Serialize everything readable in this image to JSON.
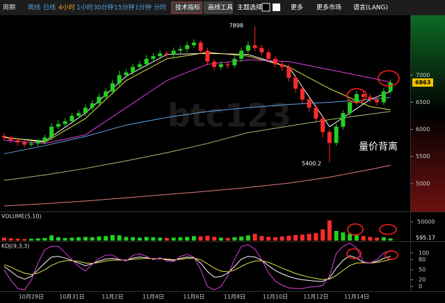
{
  "toolbar": {
    "items": [
      "周期",
      "周线",
      "日线",
      "4小时",
      "1小时",
      "30分钟",
      "15分钟",
      "1分钟",
      "分时",
      "技术指标",
      "画线工具",
      "主题选择",
      "更多",
      "更多市场",
      "语言(LANG)"
    ]
  },
  "watermark": "btc123",
  "chart_data": [
    {
      "type": "candlestick",
      "categories": [
        null,
        null,
        null,
        null,
        "10月29日",
        null,
        null,
        null,
        null,
        null,
        "10月31日",
        null,
        null,
        null,
        null,
        null,
        "11月2日",
        null,
        null,
        null,
        null,
        null,
        "11月4日",
        null,
        null,
        null,
        null,
        null,
        "11月6日",
        null,
        null,
        null,
        null,
        null,
        "11月8日",
        null,
        null,
        null,
        null,
        null,
        "11月10日",
        null,
        null,
        null,
        null,
        null,
        "11月12日",
        null,
        null,
        null,
        null,
        null,
        "11月14日",
        null,
        null,
        null,
        null,
        null
      ],
      "open": [
        5880,
        5850,
        5800,
        5760,
        5720,
        5740,
        5780,
        5850,
        6050,
        6100,
        6150,
        6250,
        6300,
        6400,
        6480,
        6600,
        6700,
        6850,
        7000,
        7050,
        7150,
        7200,
        7300,
        7350,
        7400,
        7380,
        7450,
        7480,
        7550,
        7600,
        7450,
        7250,
        7150,
        7200,
        7180,
        7300,
        7450,
        7550,
        7500,
        7420,
        7300,
        7200,
        7150,
        6950,
        6750,
        6550,
        6400,
        6200,
        5950,
        5750,
        6050,
        6300,
        6500,
        6650,
        6600,
        6550,
        6500,
        6700
      ],
      "high": [
        5930,
        5890,
        5840,
        5800,
        5790,
        5830,
        5900,
        6120,
        6170,
        6210,
        6300,
        6360,
        6460,
        6540,
        6660,
        6760,
        6920,
        7080,
        7110,
        7210,
        7260,
        7370,
        7410,
        7460,
        7450,
        7510,
        7540,
        7610,
        7660,
        7640,
        7500,
        7300,
        7260,
        7240,
        7360,
        7510,
        7620,
        7898,
        7560,
        7470,
        7350,
        7260,
        7200,
        7000,
        6800,
        6600,
        6450,
        6260,
        6000,
        6100,
        6350,
        6560,
        6700,
        6720,
        6650,
        6600,
        6760,
        6920
      ],
      "low": [
        5790,
        5750,
        5700,
        5670,
        5680,
        5690,
        5730,
        5800,
        6000,
        6050,
        6100,
        6200,
        6240,
        6350,
        6420,
        6540,
        6640,
        6800,
        6940,
        7000,
        7100,
        7150,
        7250,
        7290,
        7320,
        7330,
        7400,
        7420,
        7500,
        7390,
        7180,
        7080,
        7100,
        7120,
        7130,
        7240,
        7400,
        7440,
        7360,
        7240,
        7140,
        7080,
        6880,
        6680,
        6480,
        6330,
        6120,
        5850,
        5400.2,
        5700,
        6000,
        6250,
        6450,
        6540,
        6490,
        6440,
        6450,
        6650
      ],
      "close": [
        5850,
        5800,
        5760,
        5720,
        5740,
        5780,
        5850,
        6050,
        6100,
        6150,
        6250,
        6300,
        6400,
        6480,
        6600,
        6700,
        6850,
        7000,
        7050,
        7150,
        7200,
        7300,
        7350,
        7400,
        7380,
        7450,
        7480,
        7550,
        7600,
        7450,
        7250,
        7150,
        7200,
        7180,
        7300,
        7450,
        7550,
        7500,
        7420,
        7300,
        7200,
        7150,
        6950,
        6750,
        6550,
        6400,
        6200,
        5950,
        5750,
        6050,
        6300,
        6500,
        6650,
        6600,
        6550,
        6500,
        6700,
        6863
      ],
      "up_color": "#22d022",
      "down_color": "#ff2b2b",
      "line_x": [
        0,
        6,
        12,
        18,
        24,
        30,
        36,
        42,
        48,
        54,
        57
      ],
      "lines": [
        {
          "color": "#ffffff",
          "values": [
            5850,
            5780,
            6300,
            6980,
            7380,
            7400,
            7380,
            7150,
            6050,
            6550,
            6700
          ]
        },
        {
          "color": "#e8e84a",
          "values": [
            5860,
            5760,
            6200,
            6900,
            7300,
            7420,
            7350,
            7150,
            6750,
            6420,
            6360
          ]
        },
        {
          "color": "#e040e0",
          "values": [
            5800,
            5740,
            5900,
            6400,
            6900,
            7200,
            7280,
            7250,
            7100,
            6950,
            6870
          ]
        },
        {
          "color": "#5fa8e8",
          "values": [
            5550,
            5700,
            5870,
            6080,
            6220,
            6330,
            6400,
            6460,
            6500,
            6550,
            6590
          ]
        },
        {
          "color": "#a8c070",
          "values": [
            5060,
            5160,
            5280,
            5420,
            5570,
            5740,
            5940,
            6060,
            6180,
            6280,
            6330
          ]
        },
        {
          "color": "#e08080",
          "values": [
            4590,
            4630,
            4680,
            4740,
            4800,
            4860,
            4930,
            5010,
            5120,
            5260,
            5340
          ]
        }
      ],
      "ylim": [
        4487,
        8103
      ],
      "yticks": [
        5000,
        5500,
        6000,
        6500,
        7000
      ],
      "current": 6863,
      "annotations": [
        "7898",
        "5400.2",
        "量价背离"
      ]
    },
    {
      "type": "bar",
      "title": "VOLUME(5,10)",
      "values": [
        8000,
        6000,
        5000,
        4000,
        5000,
        6000,
        7000,
        14000,
        9000,
        7000,
        8000,
        9000,
        10000,
        9000,
        11000,
        12000,
        15000,
        14000,
        10000,
        9000,
        8000,
        10000,
        9000,
        8000,
        7000,
        8000,
        9000,
        10000,
        12000,
        11000,
        13000,
        10000,
        8000,
        7000,
        9000,
        11000,
        14000,
        18000,
        12000,
        10000,
        9000,
        11000,
        13000,
        15000,
        16000,
        18000,
        20000,
        30000,
        54000,
        26000,
        22000,
        18000,
        14000,
        12000,
        10000,
        8000,
        9000,
        6000
      ],
      "ylim": [
        0,
        76000
      ],
      "yticks": [
        50000
      ],
      "current": 595.17
    },
    {
      "type": "line",
      "title": "KDJ(9,3,3)",
      "series": [
        {
          "color": "#ffffff",
          "values": [
            60,
            45,
            30,
            22,
            30,
            50,
            70,
            88,
            90,
            85,
            78,
            70,
            62,
            68,
            76,
            82,
            84,
            80,
            78,
            85,
            88,
            86,
            82,
            84,
            80,
            78,
            84,
            88,
            86,
            70,
            45,
            28,
            30,
            40,
            60,
            82,
            90,
            88,
            78,
            62,
            48,
            38,
            30,
            24,
            20,
            18,
            16,
            15,
            25,
            55,
            78,
            92,
            85,
            72,
            70,
            75,
            84,
            90
          ]
        },
        {
          "color": "#e8e84a",
          "values": [
            65,
            58,
            48,
            40,
            36,
            40,
            50,
            63,
            72,
            77,
            77,
            75,
            70,
            69,
            72,
            76,
            79,
            79,
            79,
            81,
            83,
            84,
            83,
            83,
            82,
            80,
            81,
            84,
            85,
            80,
            68,
            55,
            46,
            44,
            49,
            60,
            70,
            76,
            77,
            72,
            64,
            55,
            47,
            39,
            33,
            28,
            24,
            21,
            22,
            33,
            48,
            63,
            70,
            71,
            70,
            72,
            76,
            81
          ]
        },
        {
          "color": "#e040e0",
          "values": [
            50,
            19,
            -6,
            -10,
            18,
            70,
            110,
            120,
            120,
            101,
            80,
            60,
            46,
            66,
            84,
            94,
            94,
            82,
            76,
            93,
            98,
            90,
            80,
            86,
            76,
            74,
            90,
            96,
            88,
            50,
            0,
            -10,
            0,
            32,
            82,
            120,
            125,
            112,
            80,
            42,
            16,
            4,
            -4,
            -6,
            -6,
            -2,
            0,
            3,
            31,
            99,
            120,
            130,
            115,
            74,
            70,
            81,
            100,
            108
          ]
        }
      ],
      "ylim": [
        -12,
        133
      ],
      "yticks": [
        0,
        20,
        50,
        80,
        100
      ]
    }
  ]
}
